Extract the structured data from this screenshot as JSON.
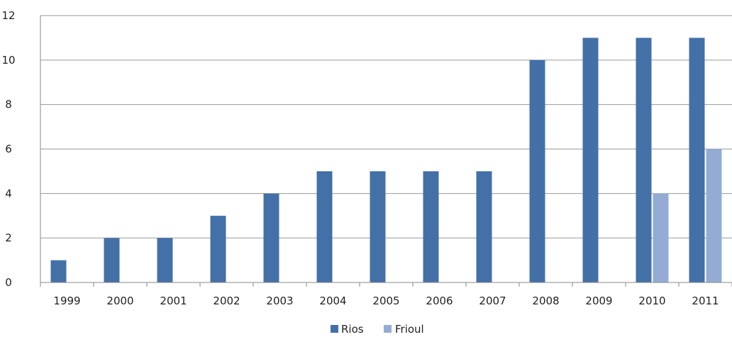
{
  "chart_data": {
    "type": "bar",
    "categories": [
      "1999",
      "2000",
      "2001",
      "2002",
      "2003",
      "2004",
      "2005",
      "2006",
      "2007",
      "2008",
      "2009",
      "2010",
      "2011"
    ],
    "series": [
      {
        "name": "Rios",
        "color": "#4470a8",
        "values": [
          1,
          2,
          2,
          3,
          4,
          5,
          5,
          5,
          5,
          10,
          11,
          11,
          11
        ]
      },
      {
        "name": "Frioul",
        "color": "#94acd3",
        "values": [
          0,
          0,
          0,
          0,
          0,
          0,
          0,
          0,
          0,
          0,
          0,
          4,
          6
        ]
      }
    ],
    "y_ticks": [
      "0",
      "2",
      "4",
      "6",
      "8",
      "10",
      "12"
    ],
    "ylim": [
      0,
      12
    ],
    "grid": true,
    "legend": "bottom-center",
    "title": "",
    "xlabel": "",
    "ylabel": ""
  }
}
